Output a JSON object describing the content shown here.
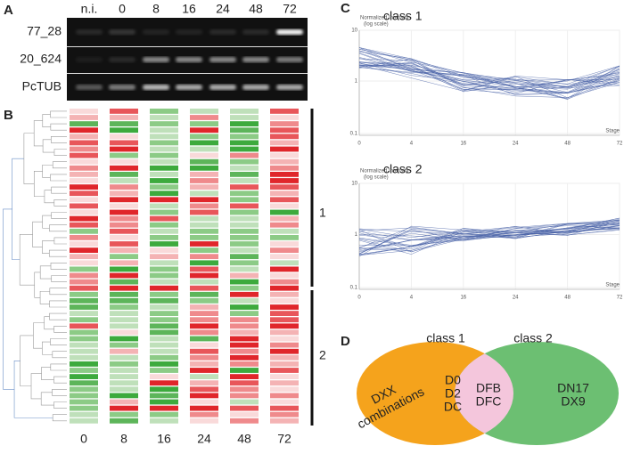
{
  "panel_labels": [
    "A",
    "B",
    "C",
    "D"
  ],
  "gel": {
    "lanes": [
      "n.i.",
      "0",
      "8",
      "16",
      "24",
      "48",
      "72"
    ],
    "rows": [
      "77_28",
      "20_624",
      "PcTUB"
    ]
  },
  "heatmap": {
    "columns": [
      "0",
      "8",
      "16",
      "24",
      "48",
      "72"
    ],
    "clusters": [
      "1",
      "2"
    ]
  },
  "profiles": [
    {
      "title": "class 1",
      "y_label": "Normalized Intensity",
      "y_sublabel": "(log scale)",
      "yticks": [
        "10",
        "1",
        "0.1"
      ],
      "xticks": [
        "0",
        "4",
        "16",
        "24",
        "48",
        "72"
      ],
      "x_label": "Stage"
    },
    {
      "title": "class 2",
      "y_label": "Normalized Intensity",
      "y_sublabel": "(log scale)",
      "yticks": [
        "10",
        "1",
        "0.1"
      ],
      "xticks": [
        "0",
        "4",
        "16",
        "24",
        "48",
        "72"
      ],
      "x_label": "Stage"
    }
  ],
  "venn": {
    "left_title": "class 1",
    "right_title": "class 2",
    "left_only": [
      "DXX",
      "combinations"
    ],
    "shared_left": [
      "D0",
      "D2",
      "DC"
    ],
    "shared_right": [
      "DFB",
      "DFC"
    ],
    "right_only": [
      "DN17",
      "DX9"
    ]
  }
}
